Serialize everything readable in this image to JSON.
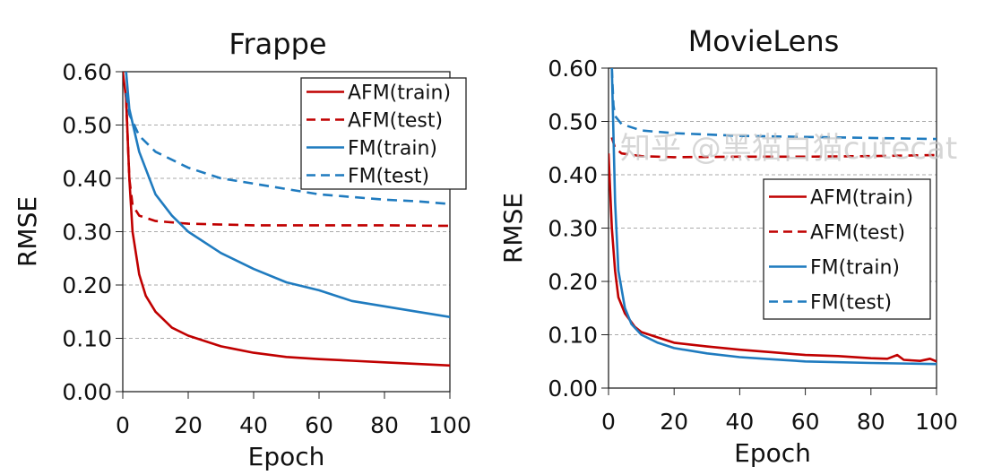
{
  "watermark": "知乎 @黑猫白猫cutecat",
  "chart_data": [
    {
      "type": "line",
      "title": "Frappe",
      "xlabel": "Epoch",
      "ylabel": "RMSE",
      "xlim": [
        0,
        100
      ],
      "ylim": [
        0,
        0.6
      ],
      "xticks": [
        "0",
        "20",
        "40",
        "60",
        "80",
        "100"
      ],
      "yticks": [
        "0.00",
        "0.10",
        "0.20",
        "0.30",
        "0.40",
        "0.50",
        "0.60"
      ],
      "grid": "horizontal dashed",
      "legend": "top-right",
      "series": [
        {
          "name": "AFM(train)",
          "color": "#c00000",
          "dash": false,
          "x": [
            0,
            1,
            2,
            3,
            5,
            7,
            10,
            15,
            20,
            30,
            40,
            50,
            60,
            70,
            80,
            90,
            100
          ],
          "y": [
            0.6,
            0.55,
            0.4,
            0.3,
            0.22,
            0.18,
            0.15,
            0.12,
            0.105,
            0.085,
            0.073,
            0.065,
            0.061,
            0.058,
            0.055,
            0.052,
            0.049
          ]
        },
        {
          "name": "AFM(test)",
          "color": "#c00000",
          "dash": true,
          "x": [
            1,
            2,
            3,
            5,
            10,
            20,
            40,
            60,
            80,
            100
          ],
          "y": [
            0.55,
            0.4,
            0.35,
            0.33,
            0.32,
            0.315,
            0.312,
            0.312,
            0.312,
            0.311
          ]
        },
        {
          "name": "FM(train)",
          "color": "#1f7bbf",
          "dash": false,
          "x": [
            1,
            2,
            5,
            10,
            15,
            20,
            30,
            40,
            50,
            60,
            70,
            80,
            90,
            100
          ],
          "y": [
            0.6,
            0.53,
            0.45,
            0.37,
            0.33,
            0.3,
            0.26,
            0.23,
            0.205,
            0.19,
            0.17,
            0.16,
            0.15,
            0.14
          ]
        },
        {
          "name": "FM(test)",
          "color": "#1f7bbf",
          "dash": true,
          "x": [
            1,
            2,
            5,
            10,
            20,
            30,
            40,
            50,
            60,
            70,
            80,
            90,
            100
          ],
          "y": [
            0.56,
            0.52,
            0.48,
            0.45,
            0.42,
            0.4,
            0.39,
            0.38,
            0.37,
            0.365,
            0.36,
            0.357,
            0.352
          ]
        }
      ]
    },
    {
      "type": "line",
      "title": "MovieLens",
      "xlabel": "Epoch",
      "ylabel": "RMSE",
      "xlim": [
        0,
        100
      ],
      "ylim": [
        0,
        0.6
      ],
      "xticks": [
        "0",
        "20",
        "40",
        "60",
        "80",
        "100"
      ],
      "yticks": [
        "0.00",
        "0.10",
        "0.20",
        "0.30",
        "0.40",
        "0.50",
        "0.60"
      ],
      "grid": "horizontal dashed",
      "legend": "center-right",
      "series": [
        {
          "name": "AFM(train)",
          "color": "#c00000",
          "dash": false,
          "x": [
            0,
            1,
            2,
            3,
            5,
            8,
            10,
            15,
            20,
            30,
            40,
            50,
            60,
            70,
            80,
            85,
            88,
            90,
            95,
            98,
            100
          ],
          "y": [
            0.44,
            0.3,
            0.22,
            0.17,
            0.14,
            0.115,
            0.105,
            0.095,
            0.085,
            0.078,
            0.072,
            0.067,
            0.062,
            0.06,
            0.056,
            0.055,
            0.062,
            0.053,
            0.051,
            0.055,
            0.05
          ]
        },
        {
          "name": "AFM(test)",
          "color": "#c00000",
          "dash": true,
          "x": [
            1,
            2,
            4,
            10,
            20,
            40,
            60,
            80,
            100
          ],
          "y": [
            0.47,
            0.45,
            0.44,
            0.435,
            0.433,
            0.434,
            0.434,
            0.435,
            0.437
          ]
        },
        {
          "name": "FM(train)",
          "color": "#1f7bbf",
          "dash": false,
          "x": [
            1,
            2,
            3,
            5,
            7,
            10,
            15,
            20,
            30,
            40,
            50,
            60,
            80,
            100
          ],
          "y": [
            0.6,
            0.35,
            0.22,
            0.15,
            0.12,
            0.1,
            0.085,
            0.075,
            0.065,
            0.058,
            0.054,
            0.05,
            0.047,
            0.045
          ]
        },
        {
          "name": "FM(test)",
          "color": "#1f7bbf",
          "dash": true,
          "x": [
            1,
            1.5,
            2,
            4,
            10,
            20,
            40,
            60,
            80,
            100
          ],
          "y": [
            0.6,
            0.53,
            0.51,
            0.495,
            0.483,
            0.478,
            0.473,
            0.471,
            0.469,
            0.467
          ]
        }
      ]
    }
  ]
}
